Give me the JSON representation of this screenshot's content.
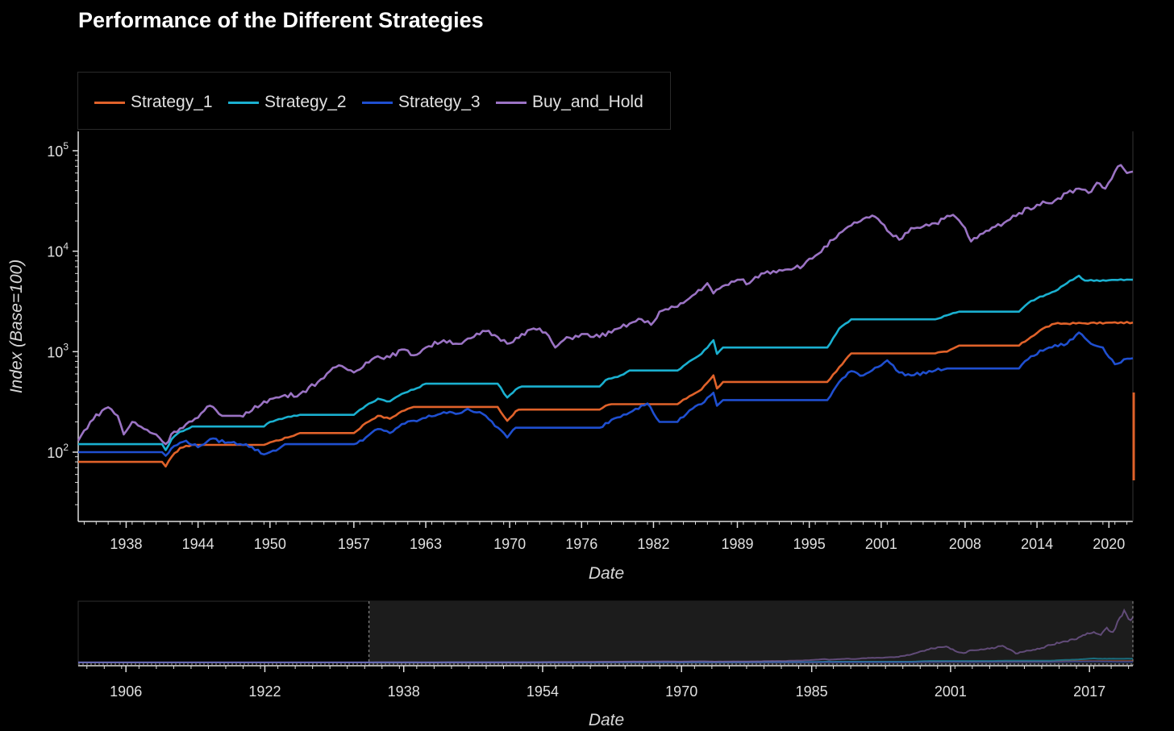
{
  "chart_data": [
    {
      "type": "line",
      "title": "Performance of the Different Strategies",
      "xlabel": "Date",
      "ylabel": "Index (Base=100)",
      "yscale": "log",
      "ylim": [
        20,
        130000
      ],
      "xlim": [
        1934.5,
        2022.5
      ],
      "grid": false,
      "legend_position": "top-left, above plot",
      "x_ticks": [
        "1938",
        "1944",
        "1950",
        "1957",
        "1963",
        "1970",
        "1976",
        "1982",
        "1989",
        "1995",
        "2001",
        "2008",
        "2014",
        "2020"
      ],
      "y_ticks": [
        {
          "value": 100,
          "base": "10",
          "exp": "2"
        },
        {
          "value": 1000,
          "base": "10",
          "exp": "3"
        },
        {
          "value": 10000,
          "base": "10",
          "exp": "4"
        },
        {
          "value": 100000,
          "base": "10",
          "exp": "5"
        }
      ],
      "series": [
        {
          "name": "Strategy_1",
          "color": "#e0622a",
          "points": [
            [
              1934.5,
              80
            ],
            [
              1941.5,
              80
            ],
            [
              1941.8,
              72
            ],
            [
              1942.3,
              90
            ],
            [
              1943,
              110
            ],
            [
              1944,
              118
            ],
            [
              1950,
              118
            ],
            [
              1950.5,
              125
            ],
            [
              1952,
              140
            ],
            [
              1953,
              155
            ],
            [
              1957.5,
              155
            ],
            [
              1958.5,
              195
            ],
            [
              1959.5,
              230
            ],
            [
              1960.5,
              215
            ],
            [
              1961.5,
              255
            ],
            [
              1962.5,
              282
            ],
            [
              1969.5,
              282
            ],
            [
              1970.3,
              205
            ],
            [
              1971,
              255
            ],
            [
              1971.5,
              265
            ],
            [
              1978,
              265
            ],
            [
              1978.5,
              290
            ],
            [
              1979,
              300
            ],
            [
              1984.5,
              300
            ],
            [
              1985.5,
              360
            ],
            [
              1986.5,
              420
            ],
            [
              1987.5,
              580
            ],
            [
              1987.8,
              430
            ],
            [
              1988.3,
              500
            ],
            [
              1997,
              500
            ],
            [
              1998,
              700
            ],
            [
              1999,
              960
            ],
            [
              2006,
              960
            ],
            [
              2007,
              1000
            ],
            [
              2008,
              1150
            ],
            [
              2013,
              1150
            ],
            [
              2014,
              1400
            ],
            [
              2015,
              1700
            ],
            [
              2016,
              1900
            ],
            [
              2022.5,
              1950
            ]
          ]
        },
        {
          "name": "Strategy_2",
          "color": "#1ab0d0",
          "points": [
            [
              1934.5,
              120
            ],
            [
              1941.5,
              120
            ],
            [
              1941.8,
              105
            ],
            [
              1942.3,
              135
            ],
            [
              1943,
              160
            ],
            [
              1944,
              180
            ],
            [
              1950,
              180
            ],
            [
              1950.5,
              200
            ],
            [
              1952,
              225
            ],
            [
              1953,
              235
            ],
            [
              1957.5,
              235
            ],
            [
              1958.5,
              290
            ],
            [
              1959.5,
              340
            ],
            [
              1960.5,
              320
            ],
            [
              1961.5,
              380
            ],
            [
              1962.5,
              420
            ],
            [
              1963.5,
              480
            ],
            [
              1969.5,
              480
            ],
            [
              1970.3,
              350
            ],
            [
              1971,
              420
            ],
            [
              1971.5,
              450
            ],
            [
              1978,
              450
            ],
            [
              1978.5,
              520
            ],
            [
              1979.5,
              560
            ],
            [
              1980.5,
              650
            ],
            [
              1984.5,
              650
            ],
            [
              1985.5,
              800
            ],
            [
              1986.5,
              950
            ],
            [
              1987.5,
              1300
            ],
            [
              1987.8,
              950
            ],
            [
              1988.3,
              1100
            ],
            [
              1997,
              1100
            ],
            [
              1998,
              1700
            ],
            [
              1999,
              2100
            ],
            [
              2006,
              2100
            ],
            [
              2007,
              2300
            ],
            [
              2008,
              2500
            ],
            [
              2013,
              2500
            ],
            [
              2014,
              3200
            ],
            [
              2016,
              4000
            ],
            [
              2017,
              4800
            ],
            [
              2018,
              5700
            ],
            [
              2018.5,
              5100
            ],
            [
              2022.5,
              5200
            ]
          ]
        },
        {
          "name": "Strategy_3",
          "color": "#1f4fd0",
          "points": [
            [
              1934.5,
              100
            ],
            [
              1941.5,
              100
            ],
            [
              1941.8,
              92
            ],
            [
              1942.5,
              115
            ],
            [
              1943.5,
              130
            ],
            [
              1944.5,
              112
            ],
            [
              1945.5,
              135
            ],
            [
              1947,
              125
            ],
            [
              1948.5,
              120
            ],
            [
              1950,
              95
            ],
            [
              1950.5,
              100
            ],
            [
              1952,
              120
            ],
            [
              1957.5,
              120
            ],
            [
              1958.5,
              140
            ],
            [
              1959.5,
              170
            ],
            [
              1960.5,
              155
            ],
            [
              1961.5,
              190
            ],
            [
              1963,
              210
            ],
            [
              1965,
              250
            ],
            [
              1966,
              240
            ],
            [
              1967,
              270
            ],
            [
              1968.5,
              230
            ],
            [
              1970.3,
              140
            ],
            [
              1971,
              175
            ],
            [
              1978,
              175
            ],
            [
              1979,
              210
            ],
            [
              1981,
              270
            ],
            [
              1982,
              305
            ],
            [
              1983,
              200
            ],
            [
              1984.5,
              200
            ],
            [
              1985.5,
              260
            ],
            [
              1986.5,
              300
            ],
            [
              1987.5,
              390
            ],
            [
              1987.8,
              290
            ],
            [
              1988.3,
              330
            ],
            [
              1997,
              330
            ],
            [
              1998,
              500
            ],
            [
              1999,
              640
            ],
            [
              2000,
              580
            ],
            [
              2002,
              820
            ],
            [
              2003,
              620
            ],
            [
              2004,
              580
            ],
            [
              2006,
              650
            ],
            [
              2007,
              680
            ],
            [
              2013,
              680
            ],
            [
              2014,
              900
            ],
            [
              2015.5,
              1100
            ],
            [
              2017,
              1200
            ],
            [
              2018,
              1550
            ],
            [
              2019,
              1200
            ],
            [
              2020,
              1100
            ],
            [
              2021,
              750
            ],
            [
              2022,
              850
            ],
            [
              2022.5,
              860
            ]
          ]
        },
        {
          "name": "Buy_and_Hold",
          "color": "#9b73c4",
          "points": [
            [
              1934.5,
              130
            ],
            [
              1935.5,
              200
            ],
            [
              1936.5,
              260
            ],
            [
              1937,
              280
            ],
            [
              1937.8,
              230
            ],
            [
              1938.3,
              150
            ],
            [
              1939,
              200
            ],
            [
              1940,
              170
            ],
            [
              1941,
              150
            ],
            [
              1941.8,
              120
            ],
            [
              1942.5,
              160
            ],
            [
              1943.5,
              190
            ],
            [
              1944.5,
              220
            ],
            [
              1945.5,
              290
            ],
            [
              1946.5,
              230
            ],
            [
              1948,
              230
            ],
            [
              1949,
              260
            ],
            [
              1950,
              320
            ],
            [
              1951.5,
              360
            ],
            [
              1953,
              380
            ],
            [
              1954.5,
              500
            ],
            [
              1955.5,
              640
            ],
            [
              1956.5,
              720
            ],
            [
              1957.5,
              620
            ],
            [
              1958.5,
              780
            ],
            [
              1959.5,
              900
            ],
            [
              1960.5,
              880
            ],
            [
              1961.5,
              1050
            ],
            [
              1962.5,
              920
            ],
            [
              1963.5,
              1100
            ],
            [
              1965,
              1300
            ],
            [
              1966.5,
              1200
            ],
            [
              1967.5,
              1400
            ],
            [
              1968.5,
              1600
            ],
            [
              1969.5,
              1400
            ],
            [
              1970.3,
              1200
            ],
            [
              1971.5,
              1500
            ],
            [
              1972.5,
              1700
            ],
            [
              1973.5,
              1550
            ],
            [
              1974.3,
              1100
            ],
            [
              1975,
              1300
            ],
            [
              1976.5,
              1500
            ],
            [
              1977.5,
              1400
            ],
            [
              1979,
              1550
            ],
            [
              1980.5,
              1900
            ],
            [
              1981.5,
              2100
            ],
            [
              1982.3,
              1850
            ],
            [
              1983,
              2500
            ],
            [
              1984.5,
              2800
            ],
            [
              1985.5,
              3400
            ],
            [
              1987,
              4800
            ],
            [
              1987.5,
              3800
            ],
            [
              1988.5,
              4600
            ],
            [
              1989.5,
              5200
            ],
            [
              1990.5,
              4800
            ],
            [
              1991.5,
              6000
            ],
            [
              1993,
              6500
            ],
            [
              1995,
              7200
            ],
            [
              1996,
              9000
            ],
            [
              1997.5,
              13000
            ],
            [
              1999,
              18000
            ],
            [
              2000,
              21000
            ],
            [
              2001,
              22000
            ],
            [
              2002,
              16000
            ],
            [
              2003,
              13000
            ],
            [
              2004,
              17000
            ],
            [
              2006,
              19000
            ],
            [
              2007.5,
              23000
            ],
            [
              2008.5,
              17000
            ],
            [
              2009,
              12500
            ],
            [
              2010,
              15000
            ],
            [
              2011,
              17500
            ],
            [
              2012,
              20000
            ],
            [
              2013,
              24000
            ],
            [
              2014.5,
              29000
            ],
            [
              2016,
              32000
            ],
            [
              2017,
              38000
            ],
            [
              2018,
              42000
            ],
            [
              2018.8,
              38000
            ],
            [
              2019.5,
              48000
            ],
            [
              2020.2,
              42000
            ],
            [
              2021,
              62000
            ],
            [
              2021.5,
              72000
            ],
            [
              2022,
              60000
            ],
            [
              2022.5,
              62000
            ]
          ]
        }
      ]
    },
    {
      "type": "line",
      "role": "range-selector",
      "xlabel": "Date",
      "yscale": "linear",
      "xlim": [
        1901,
        2022.5
      ],
      "selected_range": [
        1934.5,
        2022.5
      ],
      "x_ticks": [
        "1906",
        "1922",
        "1938",
        "1954",
        "1970",
        "1985",
        "2001",
        "2017"
      ]
    }
  ]
}
